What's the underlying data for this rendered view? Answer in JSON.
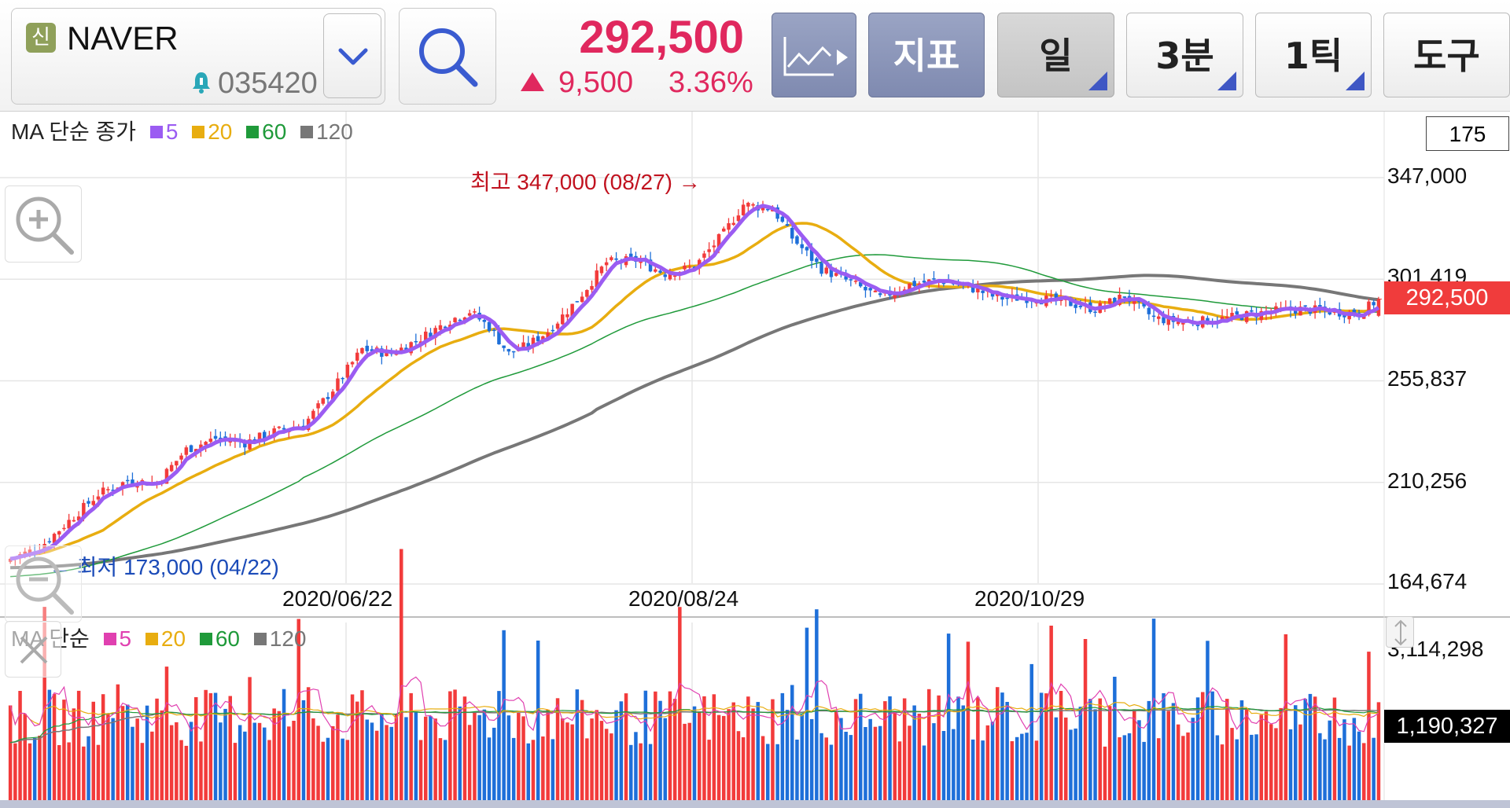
{
  "stock": {
    "badge": "신",
    "name": "NAVER",
    "code": "035420",
    "price": "292,500",
    "change": "9,500",
    "change_pct": "3.36%",
    "color_up": "#e0285e"
  },
  "toolbar": {
    "chart_type_icon": "line-chart-icon",
    "indicator_label": "지표",
    "day_label": "일",
    "minute_label": "3분",
    "tick_label": "1틱",
    "tools_label": "도구"
  },
  "main_chart": {
    "legend_title": "MA 단순 종가",
    "bar_count": "175",
    "current_price_tag": "292,500",
    "high_label": "최고 347,000 (08/27) →",
    "low_label": "← 최저 173,000 (04/22)",
    "y_labels": [
      "347,000",
      "301,419",
      "255,837",
      "210,256",
      "164,674"
    ],
    "x_labels": [
      "2020/06/22",
      "2020/08/24",
      "2020/10/29"
    ]
  },
  "volume_chart": {
    "legend_title": "MA 단순",
    "y_label_top": "3,114,298",
    "current_volume_tag": "1,190,327"
  },
  "chart_data": [
    {
      "type": "candlestick",
      "title": "",
      "ylim": [
        164674,
        347000
      ],
      "yticks": [
        347000,
        301419,
        255837,
        210256,
        164674
      ],
      "x_ticks": [
        "2020/06/22",
        "2020/08/24",
        "2020/10/29"
      ],
      "high": 347000,
      "low": 173000,
      "last_close": 292500,
      "legend": [
        "5",
        "20",
        "60",
        "120"
      ],
      "close_profile": [
        [
          0,
          176000
        ],
        [
          6,
          181000
        ],
        [
          12,
          193000
        ],
        [
          18,
          205000
        ],
        [
          24,
          211000
        ],
        [
          30,
          210000
        ],
        [
          36,
          225000
        ],
        [
          42,
          230000
        ],
        [
          48,
          228000
        ],
        [
          54,
          233000
        ],
        [
          60,
          236000
        ],
        [
          66,
          252000
        ],
        [
          72,
          270000
        ],
        [
          78,
          268000
        ],
        [
          84,
          275000
        ],
        [
          90,
          283000
        ],
        [
          94,
          287000
        ],
        [
          98,
          280000
        ],
        [
          102,
          268000
        ],
        [
          106,
          272000
        ],
        [
          110,
          278000
        ],
        [
          116,
          292000
        ],
        [
          122,
          309000
        ],
        [
          128,
          310000
        ],
        [
          134,
          304000
        ],
        [
          140,
          307000
        ],
        [
          146,
          322000
        ],
        [
          150,
          335000
        ],
        [
          156,
          333000
        ],
        [
          160,
          320000
        ],
        [
          166,
          306000
        ],
        [
          172,
          300000
        ],
        [
          178,
          293000
        ],
        [
          184,
          299000
        ],
        [
          190,
          301000
        ],
        [
          196,
          298000
        ],
        [
          202,
          293000
        ],
        [
          210,
          293000
        ],
        [
          216,
          291000
        ],
        [
          222,
          288000
        ],
        [
          228,
          294000
        ],
        [
          234,
          284000
        ],
        [
          240,
          282000
        ],
        [
          246,
          283000
        ],
        [
          252,
          285000
        ],
        [
          258,
          287000
        ],
        [
          264,
          288000
        ],
        [
          270,
          287000
        ],
        [
          276,
          286000
        ],
        [
          280,
          292500
        ]
      ]
    },
    {
      "type": "bar",
      "title": "",
      "ylim": [
        0,
        3114298
      ],
      "last_volume": 1190327,
      "legend": [
        "5",
        "20",
        "60",
        "120"
      ]
    }
  ],
  "colors": {
    "ma5": "#9b5cf2",
    "ma20": "#e8ad10",
    "ma60": "#1f9a3a",
    "ma120": "#777777",
    "vol_ma5": "#e040b0",
    "up": "#f23b3b",
    "down": "#1e6fd9"
  }
}
